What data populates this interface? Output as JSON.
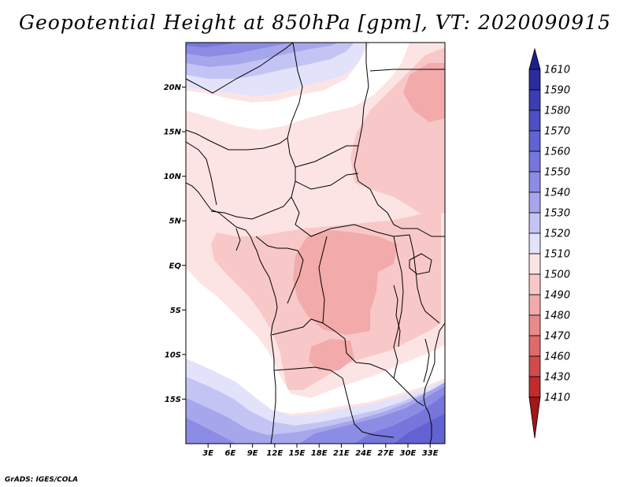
{
  "title": "Geopotential Height at 850hPa [gpm], VT: 2020090915",
  "credit": "GrADS: IGES/COLA",
  "map": {
    "lat_range": [
      -20,
      25
    ],
    "lon_range": [
      0,
      35
    ],
    "lat_ticks": [
      {
        "lat": 20,
        "label": "20N"
      },
      {
        "lat": 15,
        "label": "15N"
      },
      {
        "lat": 10,
        "label": "10N"
      },
      {
        "lat": 5,
        "label": "5N"
      },
      {
        "lat": 0,
        "label": "EQ"
      },
      {
        "lat": -5,
        "label": "5S"
      },
      {
        "lat": -10,
        "label": "10S"
      },
      {
        "lat": -15,
        "label": "15S"
      }
    ],
    "lon_ticks": [
      {
        "lon": 3,
        "label": "3E"
      },
      {
        "lon": 6,
        "label": "6E"
      },
      {
        "lon": 9,
        "label": "9E"
      },
      {
        "lon": 12,
        "label": "12E"
      },
      {
        "lon": 15,
        "label": "15E"
      },
      {
        "lon": 18,
        "label": "18E"
      },
      {
        "lon": 21,
        "label": "21E"
      },
      {
        "lon": 24,
        "label": "24E"
      },
      {
        "lon": 27,
        "label": "27E"
      },
      {
        "lon": 30,
        "label": "30E"
      },
      {
        "lon": 33,
        "label": "33E"
      }
    ]
  },
  "colorbar": {
    "levels": [
      "1610",
      "1590",
      "1580",
      "1570",
      "1560",
      "1550",
      "1540",
      "1530",
      "1520",
      "1510",
      "1500",
      "1490",
      "1480",
      "1470",
      "1460",
      "1430",
      "1410"
    ],
    "colors": [
      "#1e1e8c",
      "#2c2ca0",
      "#3c3cb4",
      "#4e4ec6",
      "#6262d2",
      "#7676dc",
      "#8c8ce4",
      "#a6a6ec",
      "#c4c4f4",
      "#e2e2fa",
      "#fde4e4",
      "#f8c8c8",
      "#f2aaaa",
      "#e88a8a",
      "#de6a6a",
      "#d24a4a",
      "#c02c2c",
      "#a01818"
    ]
  },
  "field_colors": {
    "h1490": "#f8c8c8",
    "h1500": "#fde4e4",
    "h1510": "#ffffff",
    "h1520": "#e2e2fa",
    "h1530": "#c4c4f4",
    "h1540": "#a6a6ec",
    "h1550": "#8c8ce4",
    "h1560": "#7676dc",
    "h1570": "#6262d2"
  }
}
